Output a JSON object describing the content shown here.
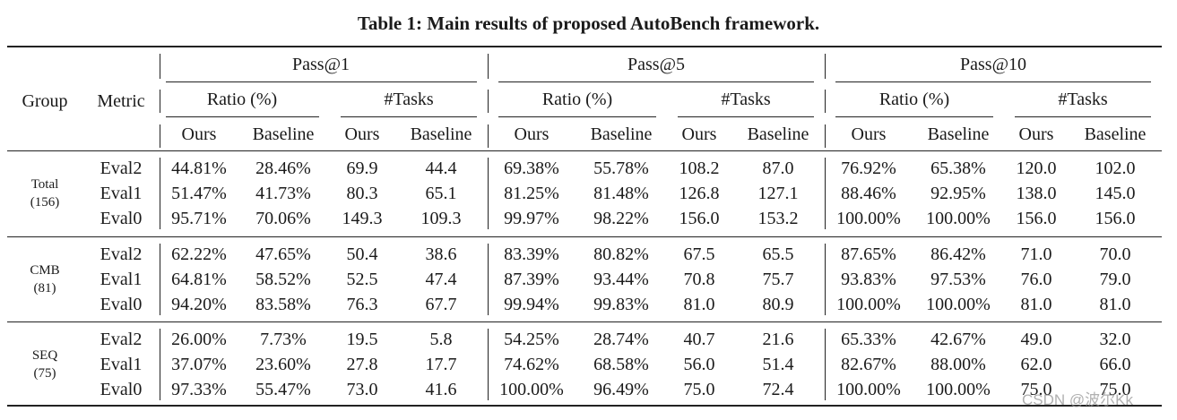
{
  "caption": "Table 1: Main results of proposed AutoBench framework.",
  "header": {
    "group": "Group",
    "metric": "Metric",
    "passes": [
      "Pass@1",
      "Pass@5",
      "Pass@10"
    ],
    "sub": [
      "Ratio (%)",
      "#Tasks"
    ],
    "cols": [
      "Ours",
      "Baseline"
    ]
  },
  "groups": [
    {
      "name": "Total",
      "count": "(156)",
      "rows": [
        {
          "metric": "Eval2",
          "values": [
            "44.81%",
            "28.46%",
            "69.9",
            "44.4",
            "69.38%",
            "55.78%",
            "108.2",
            "87.0",
            "76.92%",
            "65.38%",
            "120.0",
            "102.0"
          ]
        },
        {
          "metric": "Eval1",
          "values": [
            "51.47%",
            "41.73%",
            "80.3",
            "65.1",
            "81.25%",
            "81.48%",
            "126.8",
            "127.1",
            "88.46%",
            "92.95%",
            "138.0",
            "145.0"
          ]
        },
        {
          "metric": "Eval0",
          "values": [
            "95.71%",
            "70.06%",
            "149.3",
            "109.3",
            "99.97%",
            "98.22%",
            "156.0",
            "153.2",
            "100.00%",
            "100.00%",
            "156.0",
            "156.0"
          ]
        }
      ]
    },
    {
      "name": "CMB",
      "count": "(81)",
      "rows": [
        {
          "metric": "Eval2",
          "values": [
            "62.22%",
            "47.65%",
            "50.4",
            "38.6",
            "83.39%",
            "80.82%",
            "67.5",
            "65.5",
            "87.65%",
            "86.42%",
            "71.0",
            "70.0"
          ]
        },
        {
          "metric": "Eval1",
          "values": [
            "64.81%",
            "58.52%",
            "52.5",
            "47.4",
            "87.39%",
            "93.44%",
            "70.8",
            "75.7",
            "93.83%",
            "97.53%",
            "76.0",
            "79.0"
          ]
        },
        {
          "metric": "Eval0",
          "values": [
            "94.20%",
            "83.58%",
            "76.3",
            "67.7",
            "99.94%",
            "99.83%",
            "81.0",
            "80.9",
            "100.00%",
            "100.00%",
            "81.0",
            "81.0"
          ]
        }
      ]
    },
    {
      "name": "SEQ",
      "count": "(75)",
      "rows": [
        {
          "metric": "Eval2",
          "values": [
            "26.00%",
            "7.73%",
            "19.5",
            "5.8",
            "54.25%",
            "28.74%",
            "40.7",
            "21.6",
            "65.33%",
            "42.67%",
            "49.0",
            "32.0"
          ]
        },
        {
          "metric": "Eval1",
          "values": [
            "37.07%",
            "23.60%",
            "27.8",
            "17.7",
            "74.62%",
            "68.58%",
            "56.0",
            "51.4",
            "82.67%",
            "88.00%",
            "62.0",
            "66.0"
          ]
        },
        {
          "metric": "Eval0",
          "values": [
            "97.33%",
            "55.47%",
            "73.0",
            "41.6",
            "100.00%",
            "96.49%",
            "75.0",
            "72.4",
            "100.00%",
            "100.00%",
            "75.0",
            "75.0"
          ]
        }
      ]
    }
  ],
  "watermark": "CSDN @波尔Kk"
}
